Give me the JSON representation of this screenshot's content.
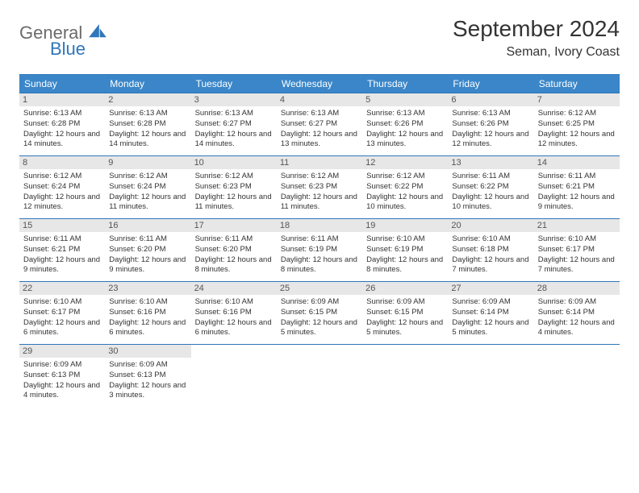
{
  "logo": {
    "line1": "General",
    "line2": "Blue"
  },
  "title": "September 2024",
  "location": "Seman, Ivory Coast",
  "colors": {
    "header_bg": "#3a86c8",
    "header_text": "#ffffff",
    "border": "#2f76bb",
    "daynum_bg": "#e7e7e7",
    "logo_gray": "#6b6b6b",
    "logo_blue": "#2f76bb"
  },
  "weekdays": [
    "Sunday",
    "Monday",
    "Tuesday",
    "Wednesday",
    "Thursday",
    "Friday",
    "Saturday"
  ],
  "grid": {
    "rows": 5,
    "cols": 7,
    "start_offset": 0,
    "days_in_month": 30
  },
  "days": [
    {
      "n": 1,
      "sunrise": "6:13 AM",
      "sunset": "6:28 PM",
      "daylight": "12 hours and 14 minutes."
    },
    {
      "n": 2,
      "sunrise": "6:13 AM",
      "sunset": "6:28 PM",
      "daylight": "12 hours and 14 minutes."
    },
    {
      "n": 3,
      "sunrise": "6:13 AM",
      "sunset": "6:27 PM",
      "daylight": "12 hours and 14 minutes."
    },
    {
      "n": 4,
      "sunrise": "6:13 AM",
      "sunset": "6:27 PM",
      "daylight": "12 hours and 13 minutes."
    },
    {
      "n": 5,
      "sunrise": "6:13 AM",
      "sunset": "6:26 PM",
      "daylight": "12 hours and 13 minutes."
    },
    {
      "n": 6,
      "sunrise": "6:13 AM",
      "sunset": "6:26 PM",
      "daylight": "12 hours and 12 minutes."
    },
    {
      "n": 7,
      "sunrise": "6:12 AM",
      "sunset": "6:25 PM",
      "daylight": "12 hours and 12 minutes."
    },
    {
      "n": 8,
      "sunrise": "6:12 AM",
      "sunset": "6:24 PM",
      "daylight": "12 hours and 12 minutes."
    },
    {
      "n": 9,
      "sunrise": "6:12 AM",
      "sunset": "6:24 PM",
      "daylight": "12 hours and 11 minutes."
    },
    {
      "n": 10,
      "sunrise": "6:12 AM",
      "sunset": "6:23 PM",
      "daylight": "12 hours and 11 minutes."
    },
    {
      "n": 11,
      "sunrise": "6:12 AM",
      "sunset": "6:23 PM",
      "daylight": "12 hours and 11 minutes."
    },
    {
      "n": 12,
      "sunrise": "6:12 AM",
      "sunset": "6:22 PM",
      "daylight": "12 hours and 10 minutes."
    },
    {
      "n": 13,
      "sunrise": "6:11 AM",
      "sunset": "6:22 PM",
      "daylight": "12 hours and 10 minutes."
    },
    {
      "n": 14,
      "sunrise": "6:11 AM",
      "sunset": "6:21 PM",
      "daylight": "12 hours and 9 minutes."
    },
    {
      "n": 15,
      "sunrise": "6:11 AM",
      "sunset": "6:21 PM",
      "daylight": "12 hours and 9 minutes."
    },
    {
      "n": 16,
      "sunrise": "6:11 AM",
      "sunset": "6:20 PM",
      "daylight": "12 hours and 9 minutes."
    },
    {
      "n": 17,
      "sunrise": "6:11 AM",
      "sunset": "6:20 PM",
      "daylight": "12 hours and 8 minutes."
    },
    {
      "n": 18,
      "sunrise": "6:11 AM",
      "sunset": "6:19 PM",
      "daylight": "12 hours and 8 minutes."
    },
    {
      "n": 19,
      "sunrise": "6:10 AM",
      "sunset": "6:19 PM",
      "daylight": "12 hours and 8 minutes."
    },
    {
      "n": 20,
      "sunrise": "6:10 AM",
      "sunset": "6:18 PM",
      "daylight": "12 hours and 7 minutes."
    },
    {
      "n": 21,
      "sunrise": "6:10 AM",
      "sunset": "6:17 PM",
      "daylight": "12 hours and 7 minutes."
    },
    {
      "n": 22,
      "sunrise": "6:10 AM",
      "sunset": "6:17 PM",
      "daylight": "12 hours and 6 minutes."
    },
    {
      "n": 23,
      "sunrise": "6:10 AM",
      "sunset": "6:16 PM",
      "daylight": "12 hours and 6 minutes."
    },
    {
      "n": 24,
      "sunrise": "6:10 AM",
      "sunset": "6:16 PM",
      "daylight": "12 hours and 6 minutes."
    },
    {
      "n": 25,
      "sunrise": "6:09 AM",
      "sunset": "6:15 PM",
      "daylight": "12 hours and 5 minutes."
    },
    {
      "n": 26,
      "sunrise": "6:09 AM",
      "sunset": "6:15 PM",
      "daylight": "12 hours and 5 minutes."
    },
    {
      "n": 27,
      "sunrise": "6:09 AM",
      "sunset": "6:14 PM",
      "daylight": "12 hours and 5 minutes."
    },
    {
      "n": 28,
      "sunrise": "6:09 AM",
      "sunset": "6:14 PM",
      "daylight": "12 hours and 4 minutes."
    },
    {
      "n": 29,
      "sunrise": "6:09 AM",
      "sunset": "6:13 PM",
      "daylight": "12 hours and 4 minutes."
    },
    {
      "n": 30,
      "sunrise": "6:09 AM",
      "sunset": "6:13 PM",
      "daylight": "12 hours and 3 minutes."
    }
  ],
  "labels": {
    "sunrise": "Sunrise:",
    "sunset": "Sunset:",
    "daylight": "Daylight:"
  }
}
